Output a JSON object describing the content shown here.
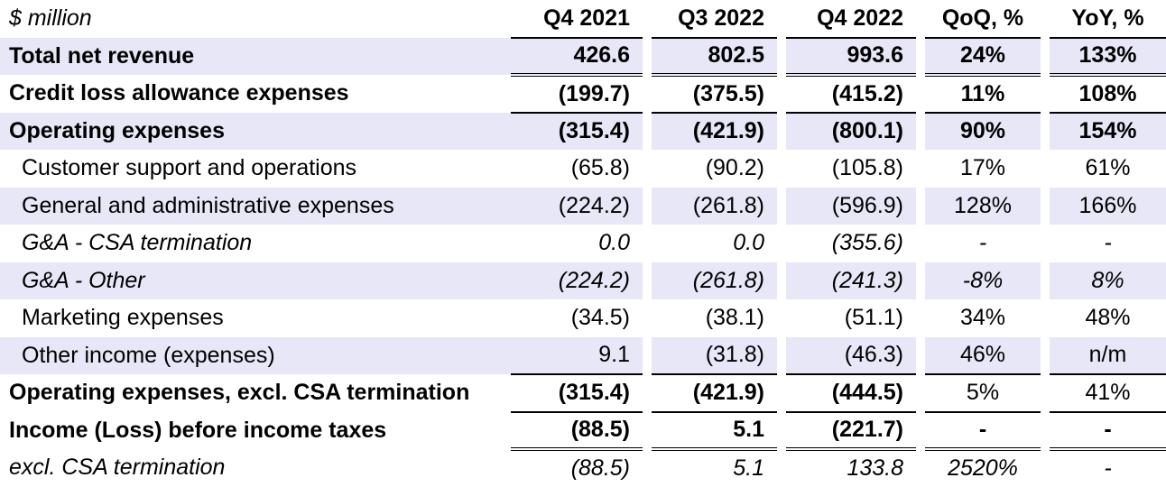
{
  "table": {
    "header": {
      "label": "$ million",
      "columns": [
        "Q4 2021",
        "Q3 2022",
        "Q4 2022",
        "QoQ, %",
        "YoY, %"
      ]
    },
    "rows": [
      {
        "label": "Total net revenue",
        "values": [
          "426.6",
          "802.5",
          "993.6",
          "24%",
          "133%"
        ]
      },
      {
        "label": "Credit loss allowance expenses",
        "values": [
          "(199.7)",
          "(375.5)",
          "(415.2)",
          "11%",
          "108%"
        ]
      },
      {
        "label": "Operating expenses",
        "values": [
          "(315.4)",
          "(421.9)",
          "(800.1)",
          "90%",
          "154%"
        ]
      },
      {
        "label": "Customer support and operations",
        "values": [
          "(65.8)",
          "(90.2)",
          "(105.8)",
          "17%",
          "61%"
        ]
      },
      {
        "label": "General and administrative expenses",
        "values": [
          "(224.2)",
          "(261.8)",
          "(596.9)",
          "128%",
          "166%"
        ]
      },
      {
        "label": "G&A - CSA termination",
        "values": [
          "0.0",
          "0.0",
          "(355.6)",
          "-",
          "-"
        ]
      },
      {
        "label": "G&A - Other",
        "values": [
          "(224.2)",
          "(261.8)",
          "(241.3)",
          "-8%",
          "8%"
        ]
      },
      {
        "label": "Marketing expenses",
        "values": [
          "(34.5)",
          "(38.1)",
          "(51.1)",
          "34%",
          "48%"
        ]
      },
      {
        "label": "Other income (expenses)",
        "values": [
          "9.1",
          "(31.8)",
          "(46.3)",
          "46%",
          "n/m"
        ]
      },
      {
        "label": "Operating expenses, excl. CSA termination",
        "values": [
          "(315.4)",
          "(421.9)",
          "(444.5)",
          "5%",
          "41%"
        ]
      },
      {
        "label": "Income (Loss) before income taxes",
        "values": [
          "(88.5)",
          "5.1",
          "(221.7)",
          "-",
          "-"
        ]
      },
      {
        "label": "excl. CSA termination",
        "values": [
          "(88.5)",
          "5.1",
          "133.8",
          "2520%",
          "-"
        ]
      }
    ]
  }
}
